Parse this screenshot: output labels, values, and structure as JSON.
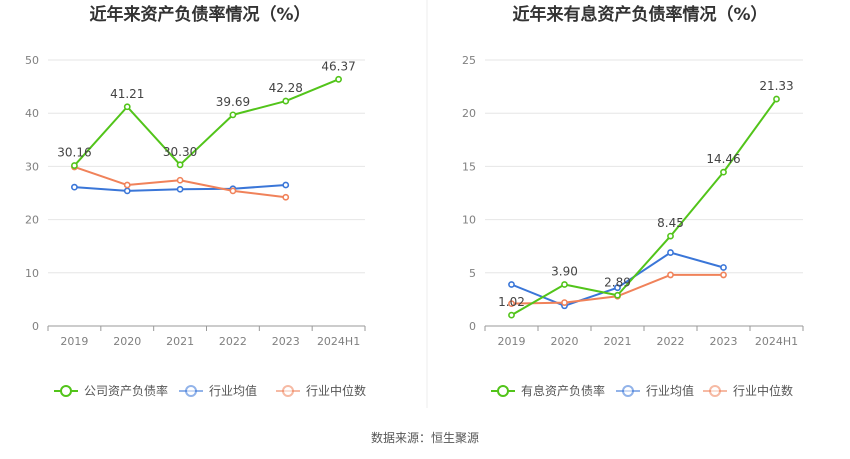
{
  "source_note": "数据来源：恒生聚源",
  "chart_data": [
    {
      "type": "line",
      "title": "近年来资产负债率情况（%）",
      "categories": [
        "2019",
        "2020",
        "2021",
        "2022",
        "2023",
        "2024H1"
      ],
      "ylim": [
        0,
        50
      ],
      "yticks": [
        0,
        10,
        20,
        30,
        40,
        50
      ],
      "grid": true,
      "legend_position": "bottom",
      "series": [
        {
          "name": "公司资产负债率",
          "color": "#52c41a",
          "values": [
            30.16,
            41.21,
            30.3,
            39.69,
            42.28,
            46.37
          ],
          "labels": [
            "30.16",
            "41.21",
            "30.30",
            "39.69",
            "42.28",
            "46.37"
          ]
        },
        {
          "name": "行业均值",
          "color": "#3a76d8",
          "values": [
            26.1,
            25.4,
            25.7,
            25.8,
            26.5,
            null
          ]
        },
        {
          "name": "行业中位数",
          "color": "#f0825a",
          "values": [
            29.9,
            26.5,
            27.4,
            25.4,
            24.2,
            null
          ]
        }
      ]
    },
    {
      "type": "line",
      "title": "近年来有息资产负债率情况（%）",
      "categories": [
        "2019",
        "2020",
        "2021",
        "2022",
        "2023",
        "2024H1"
      ],
      "ylim": [
        0,
        25
      ],
      "yticks": [
        0,
        5,
        10,
        15,
        20,
        25
      ],
      "grid": true,
      "legend_position": "bottom",
      "series": [
        {
          "name": "有息资产负债率",
          "color": "#52c41a",
          "values": [
            1.02,
            3.9,
            2.89,
            8.45,
            14.46,
            21.33
          ],
          "labels": [
            "1.02",
            "3.90",
            "2.89",
            "8.45",
            "14.46",
            "21.33"
          ]
        },
        {
          "name": "行业均值",
          "color": "#3a76d8",
          "values": [
            3.9,
            1.9,
            3.6,
            6.9,
            5.5,
            null
          ]
        },
        {
          "name": "行业中位数",
          "color": "#f0825a",
          "values": [
            2.1,
            2.2,
            2.8,
            4.8,
            4.8,
            null
          ]
        }
      ]
    }
  ]
}
